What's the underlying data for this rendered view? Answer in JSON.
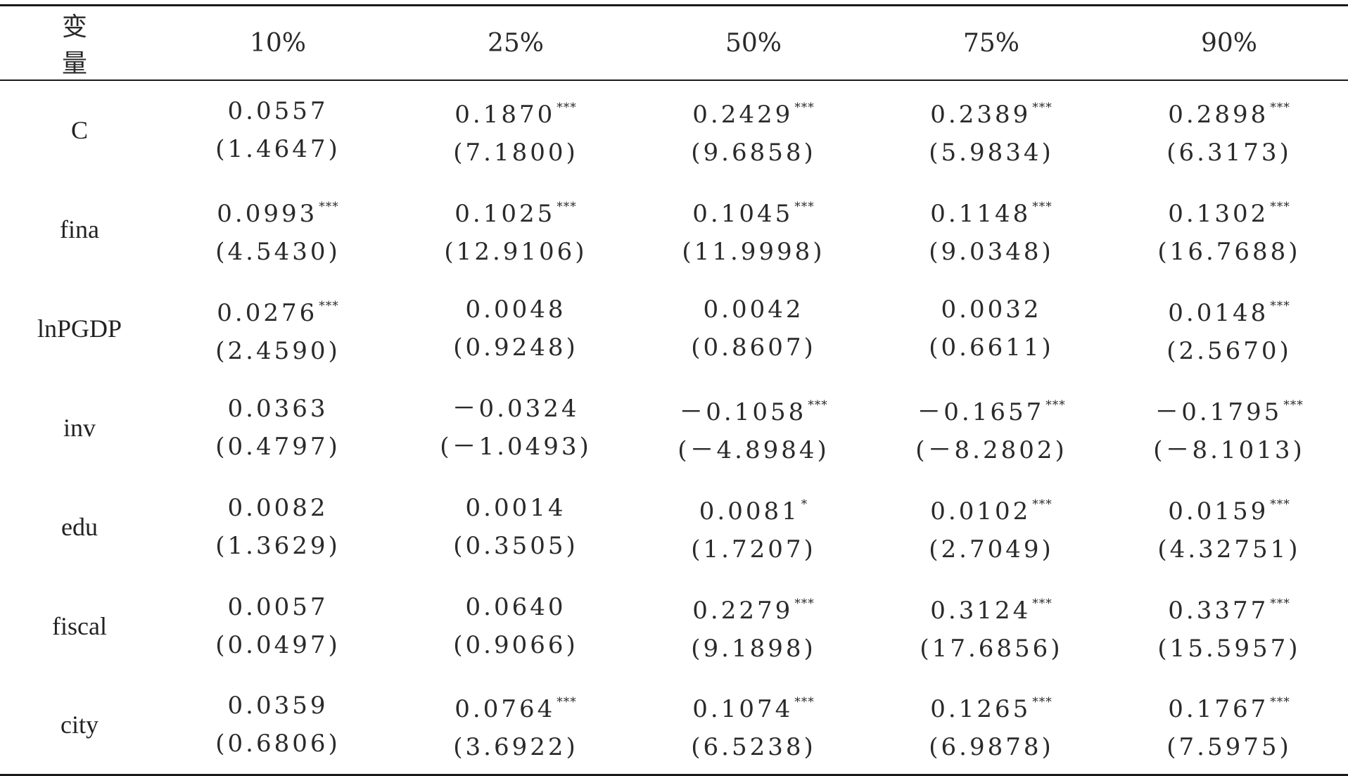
{
  "table": {
    "headers": [
      "变　量",
      "10%",
      "25%",
      "50%",
      "75%",
      "90%"
    ],
    "rows": [
      {
        "variable": "C",
        "cells": [
          {
            "coef": "0.0557",
            "stars": "",
            "t": "(1.4647)"
          },
          {
            "coef": "0.1870",
            "stars": "***",
            "t": "(7.1800)"
          },
          {
            "coef": "0.2429",
            "stars": "***",
            "t": "(9.6858)"
          },
          {
            "coef": "0.2389",
            "stars": "***",
            "t": "(5.9834)"
          },
          {
            "coef": "0.2898",
            "stars": "***",
            "t": "(6.3173)"
          }
        ]
      },
      {
        "variable": "fina",
        "cells": [
          {
            "coef": "0.0993",
            "stars": "***",
            "t": "(4.5430)"
          },
          {
            "coef": "0.1025",
            "stars": "***",
            "t": "(12.9106)"
          },
          {
            "coef": "0.1045",
            "stars": "***",
            "t": "(11.9998)"
          },
          {
            "coef": "0.1148",
            "stars": "***",
            "t": "(9.0348)"
          },
          {
            "coef": "0.1302",
            "stars": "***",
            "t": "(16.7688)"
          }
        ]
      },
      {
        "variable": "lnPGDP",
        "cells": [
          {
            "coef": "0.0276",
            "stars": "***",
            "t": "(2.4590)"
          },
          {
            "coef": "0.0048",
            "stars": "",
            "t": "(0.9248)"
          },
          {
            "coef": "0.0042",
            "stars": "",
            "t": "(0.8607)"
          },
          {
            "coef": "0.0032",
            "stars": "",
            "t": "(0.6611)"
          },
          {
            "coef": "0.0148",
            "stars": "***",
            "t": "(2.5670)"
          }
        ]
      },
      {
        "variable": "inv",
        "cells": [
          {
            "coef": "0.0363",
            "stars": "",
            "t": "(0.4797)"
          },
          {
            "coef": "－0.0324",
            "stars": "",
            "t": "(－1.0493)"
          },
          {
            "coef": "－0.1058",
            "stars": "***",
            "t": "(－4.8984)"
          },
          {
            "coef": "－0.1657",
            "stars": "***",
            "t": "(－8.2802)"
          },
          {
            "coef": "－0.1795",
            "stars": "***",
            "t": "(－8.1013)"
          }
        ]
      },
      {
        "variable": "edu",
        "cells": [
          {
            "coef": "0.0082",
            "stars": "",
            "t": "(1.3629)"
          },
          {
            "coef": "0.0014",
            "stars": "",
            "t": "(0.3505)"
          },
          {
            "coef": "0.0081",
            "stars": "*",
            "t": "(1.7207)"
          },
          {
            "coef": "0.0102",
            "stars": "***",
            "t": "(2.7049)"
          },
          {
            "coef": "0.0159",
            "stars": "***",
            "t": "(4.32751)"
          }
        ]
      },
      {
        "variable": "fiscal",
        "cells": [
          {
            "coef": "0.0057",
            "stars": "",
            "t": "(0.0497)"
          },
          {
            "coef": "0.0640",
            "stars": "",
            "t": "(0.9066)"
          },
          {
            "coef": "0.2279",
            "stars": "***",
            "t": "(9.1898)"
          },
          {
            "coef": "0.3124",
            "stars": "***",
            "t": "(17.6856)"
          },
          {
            "coef": "0.3377",
            "stars": "***",
            "t": "(15.5957)"
          }
        ]
      },
      {
        "variable": "city",
        "cells": [
          {
            "coef": "0.0359",
            "stars": "",
            "t": "(0.6806)"
          },
          {
            "coef": "0.0764",
            "stars": "***",
            "t": "(3.6922)"
          },
          {
            "coef": "0.1074",
            "stars": "***",
            "t": "(6.5238)"
          },
          {
            "coef": "0.1265",
            "stars": "***",
            "t": "(6.9878)"
          },
          {
            "coef": "0.1767",
            "stars": "***",
            "t": "(7.5975)"
          }
        ]
      }
    ]
  }
}
